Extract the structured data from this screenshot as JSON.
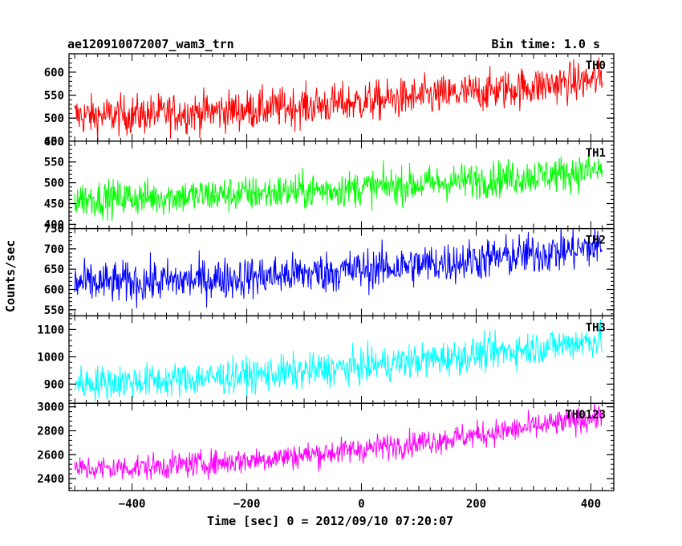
{
  "header": {
    "title": "ae120910072007_wam3_trn",
    "bin_time": "Bin time: 1.0 s"
  },
  "chart_data": {
    "type": "line",
    "xlabel": "Time [sec] 0 = 2012/09/10 07:20:07",
    "ylabel": "Counts/sec",
    "xlim": [
      -510,
      440
    ],
    "x_range": [
      -500,
      420
    ],
    "x_ticks": [
      -400,
      -200,
      0,
      200,
      400
    ],
    "x_tick_labels": [
      "−400",
      "−200",
      "0",
      "200",
      "400"
    ],
    "panels": [
      {
        "label": "TH0",
        "color": "#ff0000",
        "ylim": [
          450,
          640
        ],
        "ticks": [
          450,
          500,
          550,
          600
        ],
        "tick_labels": [
          "450",
          "500",
          "550",
          "600"
        ],
        "trend_start": 505,
        "trend_end": 585,
        "noise": 22
      },
      {
        "label": "TH1",
        "color": "#00ff00",
        "ylim": [
          390,
          600
        ],
        "ticks": [
          400,
          450,
          500,
          550,
          600
        ],
        "tick_labels": [
          "400",
          "450",
          "500",
          "550",
          "600"
        ],
        "trend_start": 462,
        "trend_end": 530,
        "noise": 22
      },
      {
        "label": "TH2",
        "color": "#0000ff",
        "ylim": [
          535,
          750
        ],
        "ticks": [
          550,
          600,
          650,
          700,
          750
        ],
        "tick_labels": [
          "550",
          "600",
          "650",
          "700",
          "750"
        ],
        "trend_start": 615,
        "trend_end": 705,
        "noise": 26
      },
      {
        "label": "TH3",
        "color": "#00ffff",
        "ylim": [
          830,
          1150
        ],
        "ticks": [
          900,
          1000,
          1100
        ],
        "tick_labels": [
          "900",
          "1000",
          "1100"
        ],
        "trend_start": 905,
        "trend_end": 1065,
        "noise": 32
      },
      {
        "label": "TH0123",
        "color": "#ff00ff",
        "ylim": [
          2300,
          3030
        ],
        "ticks": [
          2400,
          2600,
          2800,
          3000
        ],
        "tick_labels": [
          "2400",
          "2600",
          "2800",
          "3000"
        ],
        "trend_start": 2480,
        "trend_end": 2920,
        "noise": 55
      }
    ]
  }
}
